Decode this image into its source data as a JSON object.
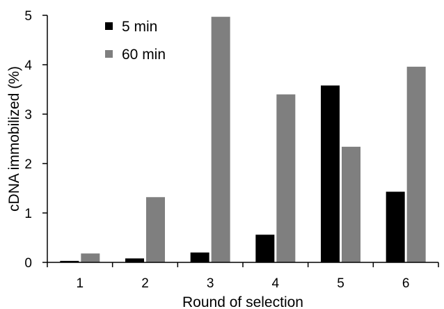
{
  "chart_data": {
    "type": "bar",
    "title": "",
    "xlabel": "Round of selection",
    "ylabel": "cDNA immobilized (%)",
    "categories": [
      "1",
      "2",
      "3",
      "4",
      "5",
      "6"
    ],
    "ylim": [
      0,
      5
    ],
    "yticks": [
      "0",
      "1",
      "2",
      "3",
      "4",
      "5"
    ],
    "grid": false,
    "legend_position": "top-left",
    "series": [
      {
        "name": "5 min",
        "color": "#000000",
        "values": [
          0.03,
          0.08,
          0.2,
          0.56,
          3.58,
          1.43
        ]
      },
      {
        "name": "60 min",
        "color": "#7f7f7f",
        "values": [
          0.18,
          1.32,
          4.97,
          3.4,
          2.34,
          3.96
        ]
      }
    ]
  }
}
